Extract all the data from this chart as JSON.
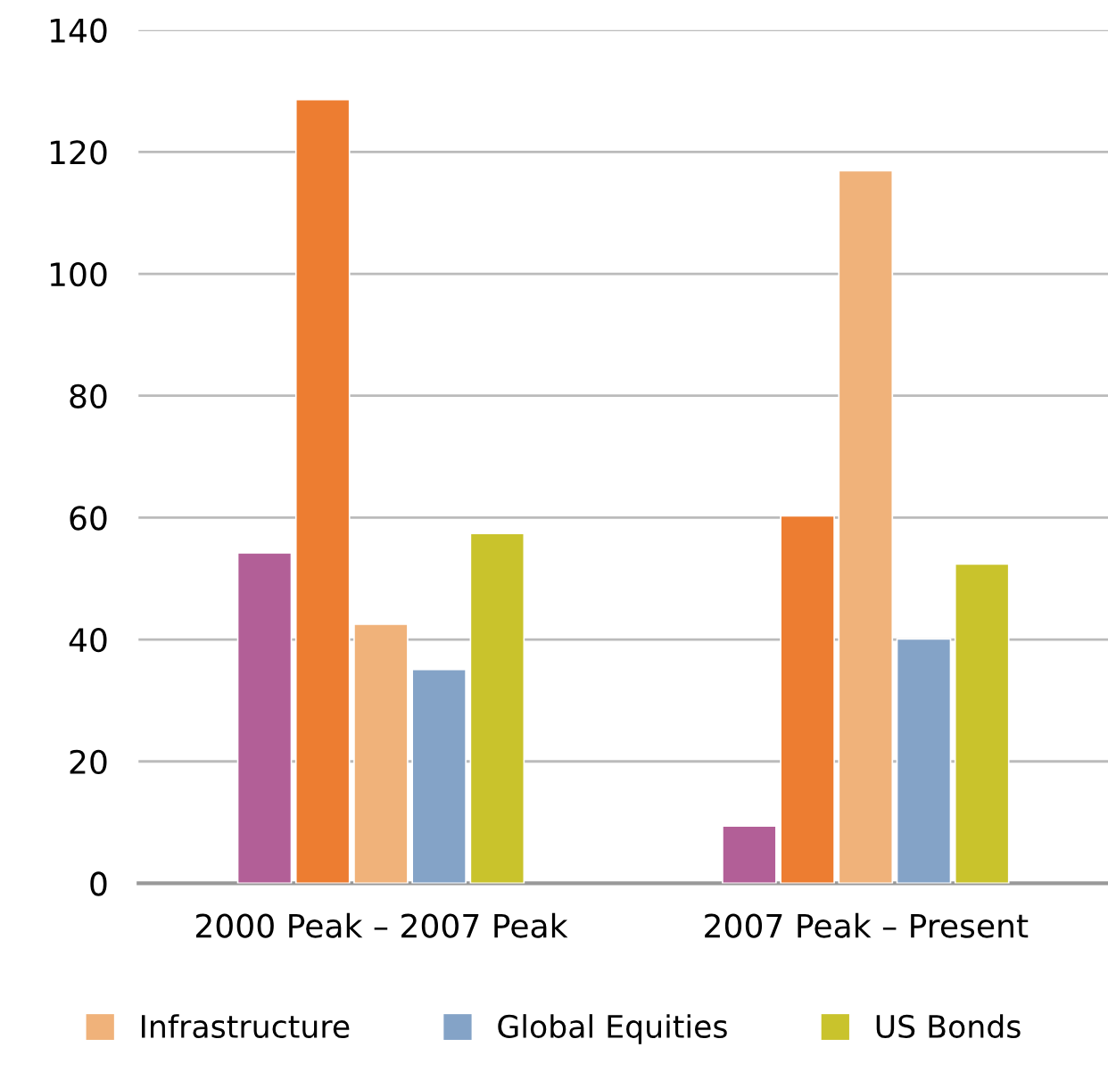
{
  "chart_data": {
    "type": "bar",
    "categories": [
      "2000 Peak – 2007 Peak",
      "2007 Peak – Present"
    ],
    "series": [
      {
        "color": "#b25f97",
        "values": [
          54.2,
          9.4
        ]
      },
      {
        "color": "#ed7d31",
        "values": [
          128.6,
          60.3
        ]
      },
      {
        "name": "Infrastructure",
        "color": "#f0b27a",
        "values": [
          42.5,
          116.9
        ]
      },
      {
        "name": "Global Equities",
        "color": "#84a3c7",
        "values": [
          35.1,
          40.1
        ]
      },
      {
        "name": "US Bonds",
        "color": "#c9c32c",
        "values": [
          57.4,
          52.4
        ]
      }
    ],
    "ylim": [
      0,
      140
    ],
    "yticks": [
      0,
      20,
      40,
      60,
      80,
      100,
      120,
      140
    ],
    "grid": "y",
    "legend": "bottom"
  }
}
